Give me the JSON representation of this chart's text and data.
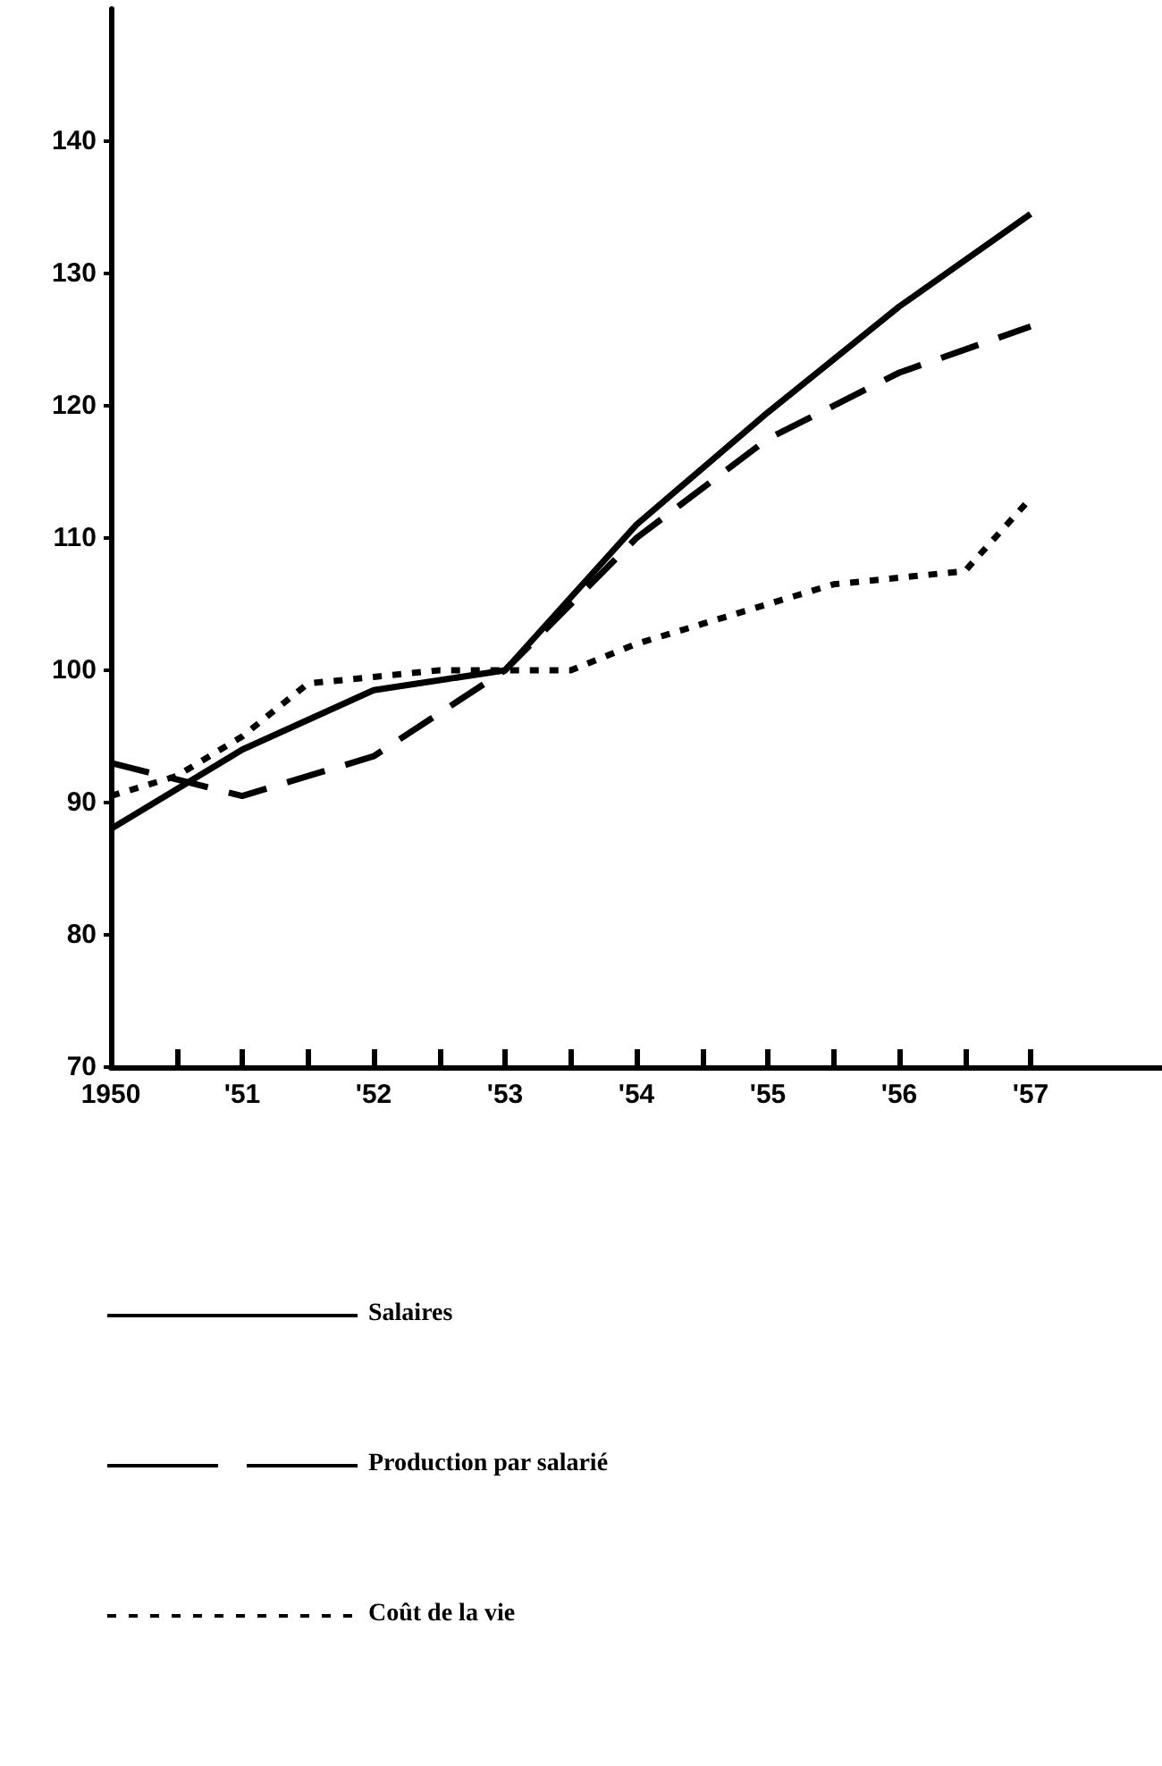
{
  "chart_data": {
    "type": "line",
    "xlim": [
      1950,
      1958
    ],
    "ylim": [
      70,
      150
    ],
    "xticks": [
      {
        "value": 1950,
        "label": "1950"
      },
      {
        "value": 1950.5,
        "label": null
      },
      {
        "value": 1951,
        "label": "'51"
      },
      {
        "value": 1951.5,
        "label": null
      },
      {
        "value": 1952,
        "label": "'52"
      },
      {
        "value": 1952.5,
        "label": null
      },
      {
        "value": 1953,
        "label": "'53"
      },
      {
        "value": 1953.5,
        "label": null
      },
      {
        "value": 1954,
        "label": "'54"
      },
      {
        "value": 1954.5,
        "label": null
      },
      {
        "value": 1955,
        "label": "'55"
      },
      {
        "value": 1955.5,
        "label": null
      },
      {
        "value": 1956,
        "label": "'56"
      },
      {
        "value": 1956.5,
        "label": null
      },
      {
        "value": 1957,
        "label": "'57"
      }
    ],
    "yticks": [
      70,
      80,
      90,
      100,
      110,
      120,
      130,
      140
    ],
    "grid": false,
    "legend": "bottom",
    "marker": "none",
    "series": [
      {
        "name": "Salaires",
        "color": "#000000",
        "line_style": "solid",
        "x": [
          1950,
          1951,
          1952,
          1953,
          1954,
          1955,
          1956,
          1957
        ],
        "values": [
          88,
          94,
          98.5,
          100,
          111,
          119.5,
          127.5,
          134.5
        ]
      },
      {
        "name": "Production par salarié",
        "color": "#000000",
        "line_style": "dashed",
        "x": [
          1950,
          1951,
          1952,
          1953,
          1954,
          1955,
          1956,
          1957
        ],
        "values": [
          93,
          90.5,
          93.5,
          100,
          110,
          117.5,
          122.5,
          126
        ]
      },
      {
        "name": "Coût de la vie",
        "color": "#000000",
        "line_style": "dotted",
        "x": [
          1950,
          1950.5,
          1951,
          1951.5,
          1952,
          1952.5,
          1953,
          1953.5,
          1954,
          1954.5,
          1955,
          1955.5,
          1956,
          1956.5,
          1957
        ],
        "values": [
          90.5,
          92,
          95,
          99,
          99.5,
          100,
          100,
          100,
          102,
          103.5,
          105,
          106.5,
          107,
          107.5,
          113
        ]
      }
    ]
  }
}
